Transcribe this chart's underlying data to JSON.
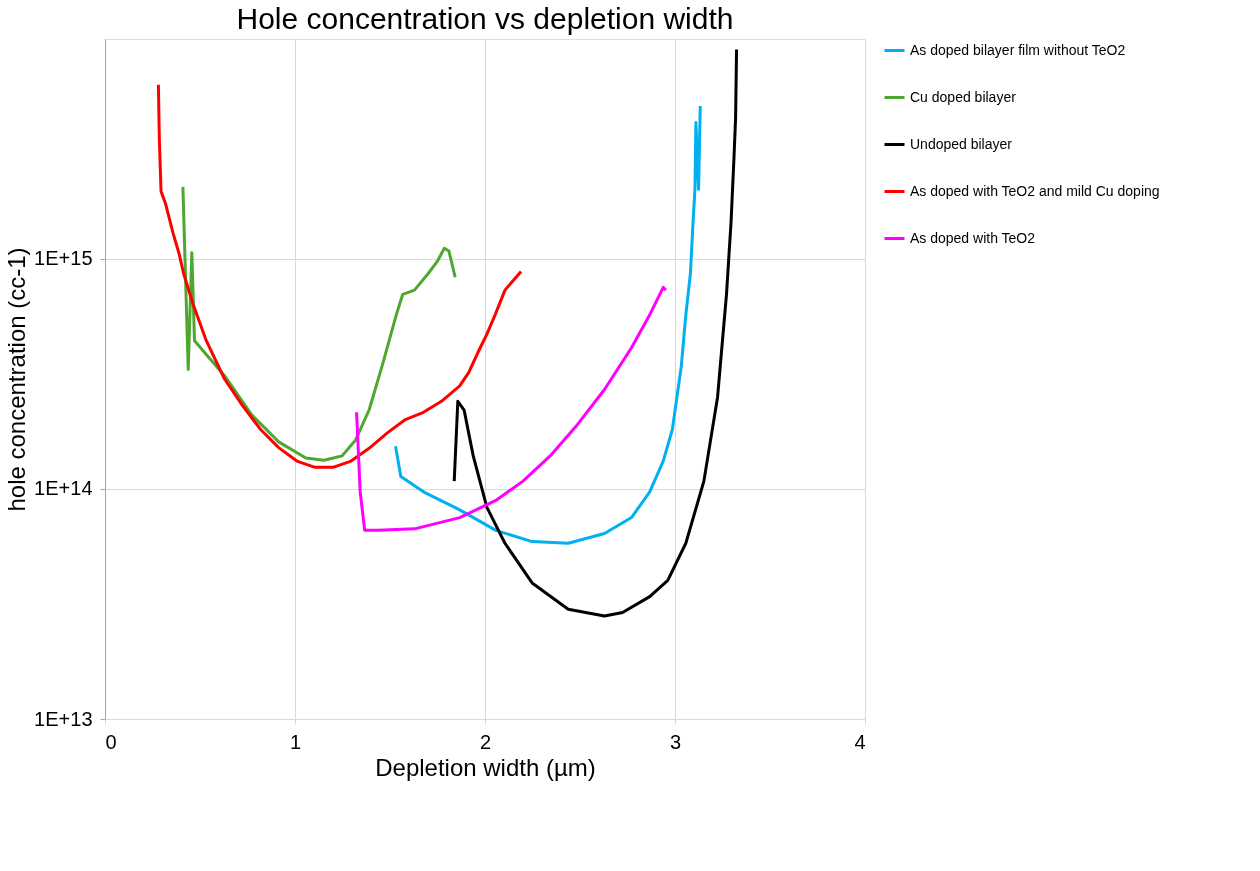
{
  "chart_data": {
    "type": "line",
    "title": "Hole concentration vs depletion width",
    "xlabel": "Depletion width (µm)",
    "ylabel": "hole concentration (cc-1)",
    "log": "y",
    "grid": true,
    "legend": "right",
    "marker": "none",
    "line_style": "solid",
    "xlim": [
      0,
      4
    ],
    "xticks": [
      0,
      1,
      2,
      3,
      4
    ],
    "ylim": [
      10000000000000.0,
      9000000000000000.0
    ],
    "yticks": [
      {
        "value": 10000000000000.0,
        "label": "1E+13"
      },
      {
        "value": 100000000000000.0,
        "label": "1E+14"
      },
      {
        "value": 1000000000000000.0,
        "label": "1E+15"
      }
    ],
    "series": [
      {
        "name": "As doped bilayer film without TeO2",
        "color": "#00b0f0",
        "x": [
          1.529,
          1.557,
          1.676,
          1.867,
          2.057,
          2.248,
          2.438,
          2.629,
          2.771,
          2.867,
          2.938,
          2.986,
          3.01,
          3.033,
          3.057,
          3.081,
          3.095,
          3.105,
          3.11,
          3.124,
          3.133
        ],
        "values": [
          153000000000000.0,
          113000000000000.0,
          97000000000000.0,
          81000000000000.0,
          66000000000000.0,
          59000000000000.0,
          58000000000000.0,
          64000000000000.0,
          75000000000000.0,
          97000000000000.0,
          132000000000000.0,
          181000000000000.0,
          250000000000000.0,
          340000000000000.0,
          570000000000000.0,
          860000000000000.0,
          1440000000000000.0,
          2000000000000000.0,
          3900000000000000.0,
          2000000000000000.0,
          4600000000000000.0
        ]
      },
      {
        "name": "Cu doped bilayer",
        "color": "#4ea72e",
        "x": [
          0.41,
          0.438,
          0.457,
          0.471,
          0.629,
          0.771,
          0.914,
          1.057,
          1.152,
          1.248,
          1.319,
          1.39,
          1.462,
          1.533,
          1.567,
          1.629,
          1.7,
          1.748,
          1.786,
          1.81,
          1.843
        ],
        "values": [
          2050000000000000.0,
          330000000000000.0,
          1060000000000000.0,
          440000000000000.0,
          310000000000000.0,
          210000000000000.0,
          160000000000000.0,
          136000000000000.0,
          133000000000000.0,
          139000000000000.0,
          163000000000000.0,
          220000000000000.0,
          350000000000000.0,
          570000000000000.0,
          700000000000000.0,
          730000000000000.0,
          860000000000000.0,
          970000000000000.0,
          1110000000000000.0,
          1080000000000000.0,
          830000000000000.0
        ]
      },
      {
        "name": "Undoped bilayer",
        "color": "#000000",
        "x": [
          1.838,
          1.857,
          1.89,
          1.938,
          2.01,
          2.105,
          2.248,
          2.438,
          2.629,
          2.724,
          2.867,
          2.962,
          3.057,
          3.152,
          3.224,
          3.271,
          3.295,
          3.31,
          3.319,
          3.324
        ],
        "values": [
          108000000000000.0,
          240000000000000.0,
          220000000000000.0,
          139000000000000.0,
          83000000000000.0,
          58000000000000.0,
          39000000000000.0,
          30000000000000.0,
          28000000000000.0,
          29000000000000.0,
          34000000000000.0,
          40000000000000.0,
          58000000000000.0,
          108000000000000.0,
          250000000000000.0,
          700000000000000.0,
          1440000000000000.0,
          2700000000000000.0,
          4100000000000000.0,
          8100000000000000.0
        ]
      },
      {
        "name": "As doped with TeO2 and mild Cu doping",
        "color": "#ff0000",
        "x": [
          0.281,
          0.286,
          0.295,
          0.319,
          0.357,
          0.39,
          0.414,
          0.462,
          0.533,
          0.629,
          0.724,
          0.819,
          0.914,
          1.01,
          1.105,
          1.2,
          1.295,
          1.39,
          1.486,
          1.581,
          1.676,
          1.771,
          1.867,
          1.914,
          1.962,
          2.01,
          2.057,
          2.105,
          2.152,
          2.19
        ],
        "values": [
          5700000000000000.0,
          3300000000000000.0,
          1960000000000000.0,
          1730000000000000.0,
          1300000000000000.0,
          1050000000000000.0,
          860000000000000.0,
          640000000000000.0,
          440000000000000.0,
          300000000000000.0,
          230000000000000.0,
          181000000000000.0,
          151000000000000.0,
          132000000000000.0,
          124000000000000.0,
          124000000000000.0,
          132000000000000.0,
          150000000000000.0,
          175000000000000.0,
          200000000000000.0,
          215000000000000.0,
          240000000000000.0,
          280000000000000.0,
          320000000000000.0,
          390000000000000.0,
          470000000000000.0,
          580000000000000.0,
          730000000000000.0,
          810000000000000.0,
          880000000000000.0
        ]
      },
      {
        "name": "As doped with TeO2",
        "color": "#ff00ff",
        "x": [
          1.324,
          1.343,
          1.367,
          1.438,
          1.629,
          1.867,
          2.057,
          2.2,
          2.343,
          2.486,
          2.629,
          2.771,
          2.867,
          2.938,
          2.952
        ],
        "values": [
          215000000000000.0,
          97000000000000.0,
          66000000000000.0,
          66000000000000.0,
          67000000000000.0,
          75000000000000.0,
          89000000000000.0,
          108000000000000.0,
          139000000000000.0,
          190000000000000.0,
          270000000000000.0,
          410000000000000.0,
          570000000000000.0,
          750000000000000.0,
          730000000000000.0
        ]
      }
    ]
  }
}
